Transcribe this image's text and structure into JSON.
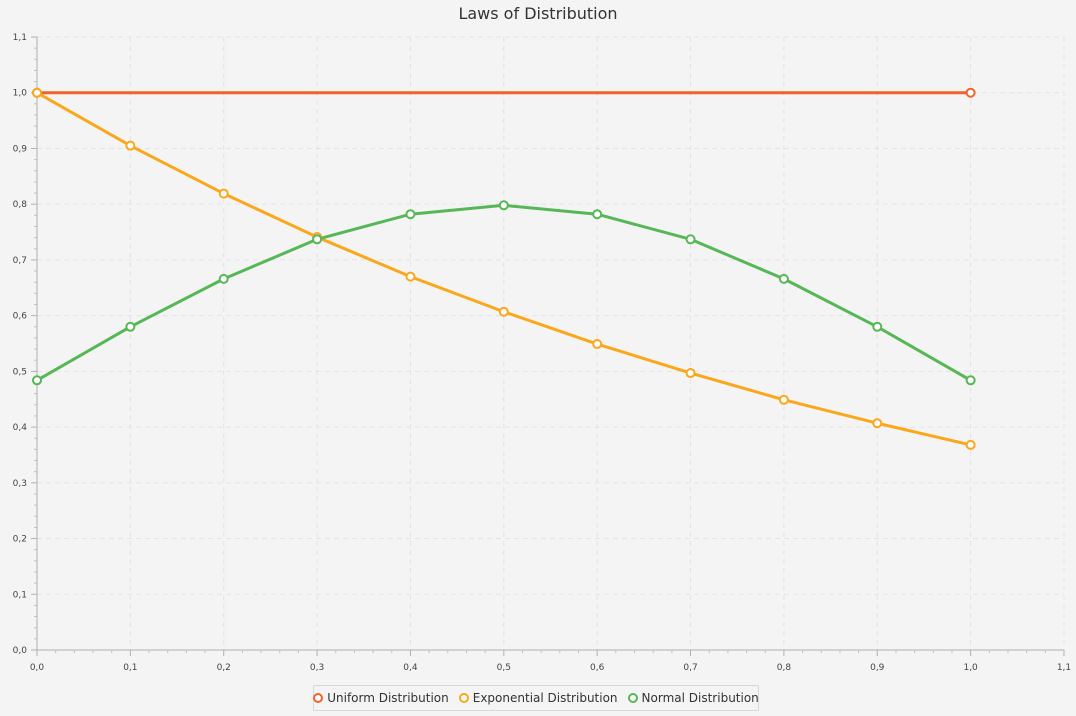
{
  "chart_data": {
    "type": "line",
    "title": "Laws of Distribution",
    "xlabel": "",
    "ylabel": "",
    "xlim": [
      0.0,
      1.1
    ],
    "ylim": [
      0.0,
      1.1
    ],
    "x_ticks": [
      "0,0",
      "0,1",
      "0,2",
      "0,3",
      "0,4",
      "0,5",
      "0,6",
      "0,7",
      "0,8",
      "0,9",
      "1,0",
      "1,1"
    ],
    "y_ticks": [
      "0,0",
      "0,1",
      "0,2",
      "0,3",
      "0,4",
      "0,5",
      "0,6",
      "0,7",
      "0,8",
      "0,9",
      "1,0",
      "1,1"
    ],
    "grid": true,
    "legend_position": "bottom",
    "series": [
      {
        "name": "Uniform Distribution",
        "color": "#f3622d",
        "x": [
          0.0,
          1.0
        ],
        "y": [
          1.0,
          1.0
        ]
      },
      {
        "name": "Exponential Distribution",
        "color": "#fba71b",
        "x": [
          0.0,
          0.1,
          0.2,
          0.3,
          0.4,
          0.5,
          0.6,
          0.7,
          0.8,
          0.9,
          1.0
        ],
        "y": [
          1.0,
          0.905,
          0.819,
          0.741,
          0.67,
          0.607,
          0.549,
          0.497,
          0.449,
          0.407,
          0.368
        ]
      },
      {
        "name": "Normal Distribution",
        "color": "#57b757",
        "x": [
          0.0,
          0.1,
          0.2,
          0.3,
          0.4,
          0.5,
          0.6,
          0.7,
          0.8,
          0.9,
          1.0
        ],
        "y": [
          0.484,
          0.58,
          0.666,
          0.737,
          0.782,
          0.798,
          0.782,
          0.737,
          0.666,
          0.58,
          0.484
        ]
      }
    ]
  }
}
